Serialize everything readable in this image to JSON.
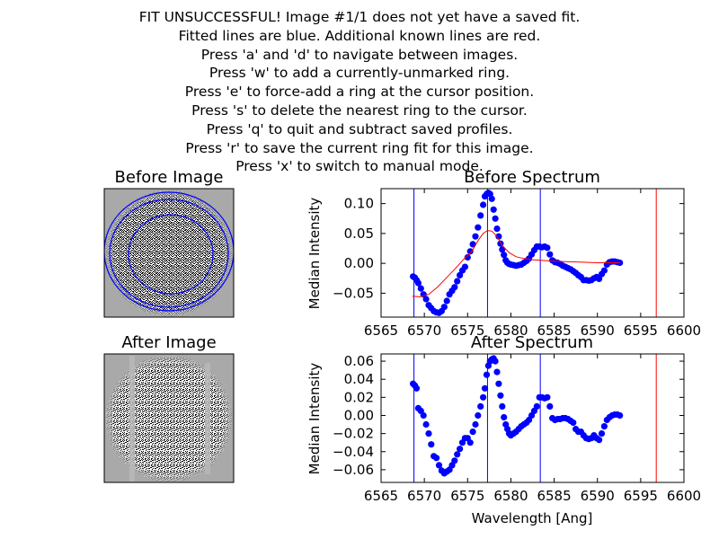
{
  "instructions": [
    "FIT UNSUCCESSFUL! Image #1/1 does not yet have a saved fit.",
    "Fitted lines are blue. Additional known lines are red.",
    "Press 'a' and 'd' to navigate between images.",
    "Press 'w' to add a currently-unmarked ring.",
    "Press 'e' to force-add a ring at the cursor position.",
    "Press 's' to delete the nearest ring to the cursor.",
    "Press 'q' to quit and subtract saved profiles.",
    "Press 'r' to save the current ring fit for this image.",
    "Press 'x' to switch to manual mode."
  ],
  "images": {
    "before_title": "Before Image",
    "after_title": "After Image"
  },
  "colors": {
    "data": "#0000ff",
    "fitted_line": "#0000ff",
    "known_line": "#ff0000",
    "model": "#ff0000",
    "image_background": "#a9a9a9"
  },
  "chart_data": [
    {
      "type": "scatter",
      "title": "Before Spectrum",
      "xlabel": "",
      "ylabel": "Median Intensity",
      "xlim": [
        6565,
        6600
      ],
      "ylim": [
        -0.09,
        0.125
      ],
      "xticks": [
        "6565",
        "6570",
        "6575",
        "6580",
        "6585",
        "6590",
        "6595",
        "6600"
      ],
      "yticks": [
        "0.10",
        "0.05",
        "0.00",
        "−0.05"
      ],
      "ytick_values": [
        0.1,
        0.05,
        0.0,
        -0.05
      ],
      "fitted_lines": [
        6568.8,
        6577.3,
        6583.4
      ],
      "known_lines": [
        6596.8
      ],
      "series": [
        {
          "marker": "circle",
          "x": [
            6568.7,
            6568.9,
            6569.1,
            6569.3,
            6569.6,
            6569.9,
            6570.2,
            6570.5,
            6570.8,
            6571.1,
            6571.4,
            6571.7,
            6572.0,
            6572.3,
            6572.6,
            6572.9,
            6573.2,
            6573.5,
            6573.8,
            6574.1,
            6574.4,
            6574.7,
            6575.0,
            6575.3,
            6575.6,
            6575.9,
            6576.2,
            6576.5,
            6576.8,
            6577.0,
            6577.2,
            6577.4,
            6577.6,
            6577.8,
            6578.0,
            6578.2,
            6578.4,
            6578.6,
            6578.8,
            6579.0,
            6579.2,
            6579.4,
            6579.6,
            6579.8,
            6580.0,
            6580.3,
            6580.6,
            6580.9,
            6581.2,
            6581.5,
            6581.8,
            6582.1,
            6582.4,
            6582.7,
            6583.0,
            6583.3,
            6583.6,
            6583.9,
            6584.2,
            6584.5,
            6584.8,
            6585.1,
            6585.4,
            6585.7,
            6586.0,
            6586.3,
            6586.6,
            6586.9,
            6587.2,
            6587.5,
            6587.8,
            6588.1,
            6588.4,
            6588.7,
            6589.0,
            6589.3,
            6589.6,
            6589.9,
            6590.2,
            6590.5,
            6590.8,
            6591.1,
            6591.4,
            6591.7,
            6592.0,
            6592.3,
            6592.6
          ],
          "y": [
            -0.022,
            -0.024,
            -0.028,
            -0.033,
            -0.042,
            -0.052,
            -0.06,
            -0.07,
            -0.075,
            -0.08,
            -0.082,
            -0.083,
            -0.08,
            -0.073,
            -0.063,
            -0.052,
            -0.046,
            -0.04,
            -0.03,
            -0.02,
            -0.012,
            -0.006,
            0.01,
            0.02,
            0.032,
            0.045,
            0.06,
            0.08,
            0.098,
            0.112,
            0.116,
            0.118,
            0.116,
            0.108,
            0.09,
            0.075,
            0.058,
            0.045,
            0.033,
            0.023,
            0.014,
            0.005,
            0.001,
            -0.001,
            -0.002,
            -0.003,
            -0.004,
            -0.003,
            -0.002,
            0.001,
            0.004,
            0.008,
            0.015,
            0.022,
            0.028,
            0.028,
            0.027,
            0.028,
            0.026,
            0.015,
            0.005,
            0.002,
            0.001,
            -0.001,
            -0.004,
            -0.006,
            -0.008,
            -0.01,
            -0.013,
            -0.016,
            -0.02,
            -0.023,
            -0.028,
            -0.028,
            -0.029,
            -0.028,
            -0.025,
            -0.023,
            -0.026,
            -0.018,
            -0.012,
            -0.002,
            0.002,
            0.003,
            0.003,
            0.002,
            0.001
          ]
        },
        {
          "style": "line",
          "x": [
            6568.6,
            6569.5,
            6570.5,
            6571.5,
            6572.5,
            6573.5,
            6574.5,
            6575.5,
            6576.2,
            6576.8,
            6577.3,
            6577.8,
            6578.4,
            6579.0,
            6579.8,
            6580.6,
            6581.5,
            6582.5,
            6583.4,
            6584.5,
            6586.0,
            6588.0,
            6590.0,
            6592.0,
            6592.6
          ],
          "y": [
            -0.055,
            -0.056,
            -0.052,
            -0.04,
            -0.025,
            -0.01,
            0.006,
            0.02,
            0.038,
            0.05,
            0.055,
            0.054,
            0.045,
            0.03,
            0.018,
            0.011,
            0.008,
            0.006,
            0.005,
            0.004,
            0.003,
            0.002,
            0.001,
            0.001,
            0.001
          ]
        }
      ]
    },
    {
      "type": "scatter",
      "title": "After Spectrum",
      "xlabel": "Wavelength [Ang]",
      "ylabel": "Median Intensity",
      "xlim": [
        6565,
        6600
      ],
      "ylim": [
        -0.074,
        0.068
      ],
      "xticks": [
        "6565",
        "6570",
        "6575",
        "6580",
        "6585",
        "6590",
        "6595",
        "6600"
      ],
      "yticks": [
        "0.06",
        "0.04",
        "0.02",
        "0.00",
        "−0.02",
        "−0.04",
        "−0.06"
      ],
      "ytick_values": [
        0.06,
        0.04,
        0.02,
        0.0,
        -0.02,
        -0.04,
        -0.06
      ],
      "fitted_lines": [
        6568.8,
        6577.3,
        6583.4
      ],
      "known_lines": [
        6596.8
      ],
      "series": [
        {
          "marker": "circle",
          "x": [
            6568.7,
            6568.9,
            6569.1,
            6569.3,
            6569.6,
            6569.9,
            6570.2,
            6570.5,
            6570.8,
            6571.1,
            6571.4,
            6571.7,
            6572.0,
            6572.3,
            6572.6,
            6572.9,
            6573.2,
            6573.5,
            6573.8,
            6574.1,
            6574.4,
            6574.7,
            6575.0,
            6575.3,
            6575.6,
            6575.9,
            6576.2,
            6576.5,
            6576.8,
            6577.0,
            6577.2,
            6577.4,
            6577.6,
            6577.8,
            6578.0,
            6578.2,
            6578.4,
            6578.6,
            6578.8,
            6579.0,
            6579.2,
            6579.4,
            6579.6,
            6579.8,
            6580.0,
            6580.3,
            6580.6,
            6580.9,
            6581.2,
            6581.5,
            6581.8,
            6582.1,
            6582.4,
            6582.7,
            6583.0,
            6583.3,
            6583.6,
            6583.9,
            6584.2,
            6584.5,
            6584.8,
            6585.1,
            6585.4,
            6585.7,
            6586.0,
            6586.3,
            6586.6,
            6586.9,
            6587.2,
            6587.5,
            6587.8,
            6588.1,
            6588.4,
            6588.7,
            6589.0,
            6589.3,
            6589.6,
            6589.9,
            6590.2,
            6590.5,
            6590.8,
            6591.1,
            6591.4,
            6591.7,
            6592.0,
            6592.3,
            6592.6
          ],
          "y": [
            0.035,
            0.033,
            0.03,
            0.008,
            0.005,
            0.0,
            -0.01,
            -0.02,
            -0.032,
            -0.045,
            -0.047,
            -0.055,
            -0.061,
            -0.064,
            -0.062,
            -0.06,
            -0.055,
            -0.05,
            -0.043,
            -0.037,
            -0.03,
            -0.025,
            -0.025,
            -0.03,
            -0.018,
            -0.01,
            0.0,
            0.01,
            0.02,
            0.03,
            0.045,
            0.055,
            0.06,
            0.062,
            0.063,
            0.06,
            0.048,
            0.035,
            0.022,
            0.01,
            -0.002,
            -0.01,
            -0.015,
            -0.02,
            -0.022,
            -0.02,
            -0.018,
            -0.015,
            -0.012,
            -0.01,
            -0.008,
            -0.005,
            0.0,
            0.005,
            0.01,
            0.02,
            0.02,
            0.019,
            0.02,
            0.01,
            -0.003,
            -0.005,
            -0.004,
            -0.004,
            -0.003,
            -0.003,
            -0.004,
            -0.006,
            -0.008,
            -0.015,
            -0.018,
            -0.018,
            -0.022,
            -0.025,
            -0.026,
            -0.025,
            -0.022,
            -0.025,
            -0.027,
            -0.02,
            -0.012,
            -0.005,
            -0.002,
            0.0,
            0.001,
            0.001,
            0.0
          ]
        }
      ]
    }
  ]
}
